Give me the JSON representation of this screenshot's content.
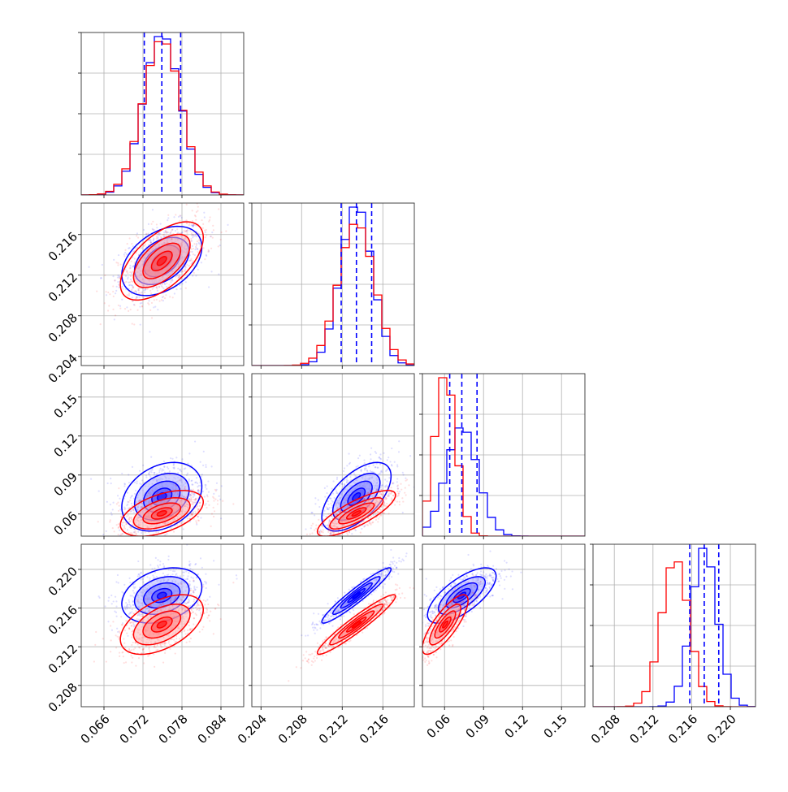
{
  "chart_data": {
    "type": "corner",
    "parameters": [
      {
        "ticks": [
          0.066,
          0.072,
          0.078,
          0.084
        ],
        "tick_labels": [
          "0.066",
          "0.072",
          "0.078",
          "0.084"
        ],
        "range": [
          0.0625,
          0.0875
        ]
      },
      {
        "ticks": [
          0.204,
          0.208,
          0.212,
          0.216
        ],
        "tick_labels": [
          "0.204",
          "0.208",
          "0.212",
          "0.216"
        ],
        "range": [
          0.2031,
          0.2191
        ]
      },
      {
        "ticks": [
          0.06,
          0.09,
          0.12,
          0.15
        ],
        "tick_labels": [
          "0.06",
          "0.09",
          "0.12",
          "0.15"
        ],
        "range": [
          0.043,
          0.168
        ]
      },
      {
        "ticks": [
          0.208,
          0.212,
          0.216,
          0.22
        ],
        "tick_labels": [
          "0.208",
          "0.212",
          "0.216",
          "0.220"
        ],
        "range": [
          0.2058,
          0.2226
        ]
      }
    ],
    "series": [
      {
        "color": "#0000ff",
        "quantiles": [
          [
            0.0722,
            0.0749,
            0.0778
          ],
          [
            0.2119,
            0.2134,
            0.2149
          ],
          [
            0.064,
            0.0733,
            0.085
          ],
          [
            0.2158,
            0.2173,
            0.2188
          ]
        ],
        "mean": [
          0.0749,
          0.2134,
          0.0733,
          0.2173
        ],
        "std": [
          0.0028,
          0.00155,
          0.012,
          0.0013
        ]
      },
      {
        "color": "#ff0000",
        "mean": [
          0.0749,
          0.2134,
          0.0605,
          0.2143
        ],
        "std": [
          0.0029,
          0.00175,
          0.008,
          0.0014
        ]
      }
    ],
    "correlations": [
      {
        "pair": [
          1,
          0
        ],
        "blue": 0.4,
        "red": 0.6
      },
      {
        "pair": [
          2,
          0
        ],
        "blue": 0.3,
        "red": 0.5
      },
      {
        "pair": [
          2,
          1
        ],
        "blue": 0.6,
        "red": 0.8
      },
      {
        "pair": [
          3,
          0
        ],
        "blue": 0.3,
        "red": 0.5
      },
      {
        "pair": [
          3,
          1
        ],
        "blue": 0.95,
        "red": 0.95
      },
      {
        "pair": [
          3,
          2
        ],
        "blue": 0.7,
        "red": 0.8
      }
    ]
  }
}
